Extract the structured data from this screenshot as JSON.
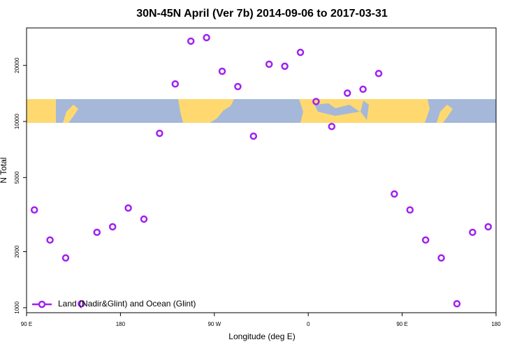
{
  "chart_data": {
    "type": "scatter",
    "title": "30N-45N April (Ver 7b)   2014-09-06 to 2017-03-31",
    "x_label": "Longitude (deg E)",
    "y_label": "N Total",
    "log_y": true,
    "legend_position": "bottom-left",
    "x": [
      97.5,
      112.5,
      127.5,
      142.5,
      157.5,
      172.5,
      187.5,
      202.5,
      217.5,
      232.5,
      247.5,
      262.5,
      277.5,
      292.5,
      307.5,
      322.5,
      337.5,
      352.5,
      367.5,
      382.5,
      397.5,
      412.5,
      427.5,
      442.5,
      457.5,
      472.5,
      487.5,
      502.5,
      517.5,
      532.5
    ],
    "series": [
      {
        "name": "Land (Nadir&Glint) and Ocean (Glint)",
        "color": "#a020f0",
        "values": [
          3350,
          2310,
          1850,
          1050,
          2540,
          2720,
          3430,
          2990,
          8640,
          15900,
          27000,
          28200,
          18600,
          15400,
          8340,
          20300,
          19800,
          23500,
          12800,
          9400,
          14200,
          14900,
          18100,
          4080,
          3350,
          2310,
          1850,
          1050,
          2540,
          2720
        ]
      }
    ],
    "xlim": [
      90,
      540
    ],
    "xticks": [
      {
        "value": 90,
        "label": "90 E"
      },
      180,
      {
        "value": 270,
        "label": "90 W"
      },
      {
        "value": 360,
        "label": "0"
      },
      {
        "value": 450,
        "label": "90 E"
      },
      {
        "value": 540,
        "label": "180"
      }
    ],
    "ylim": [
      940,
      31800
    ],
    "yticks": [
      1000,
      2000,
      5000,
      10000,
      20000
    ]
  }
}
